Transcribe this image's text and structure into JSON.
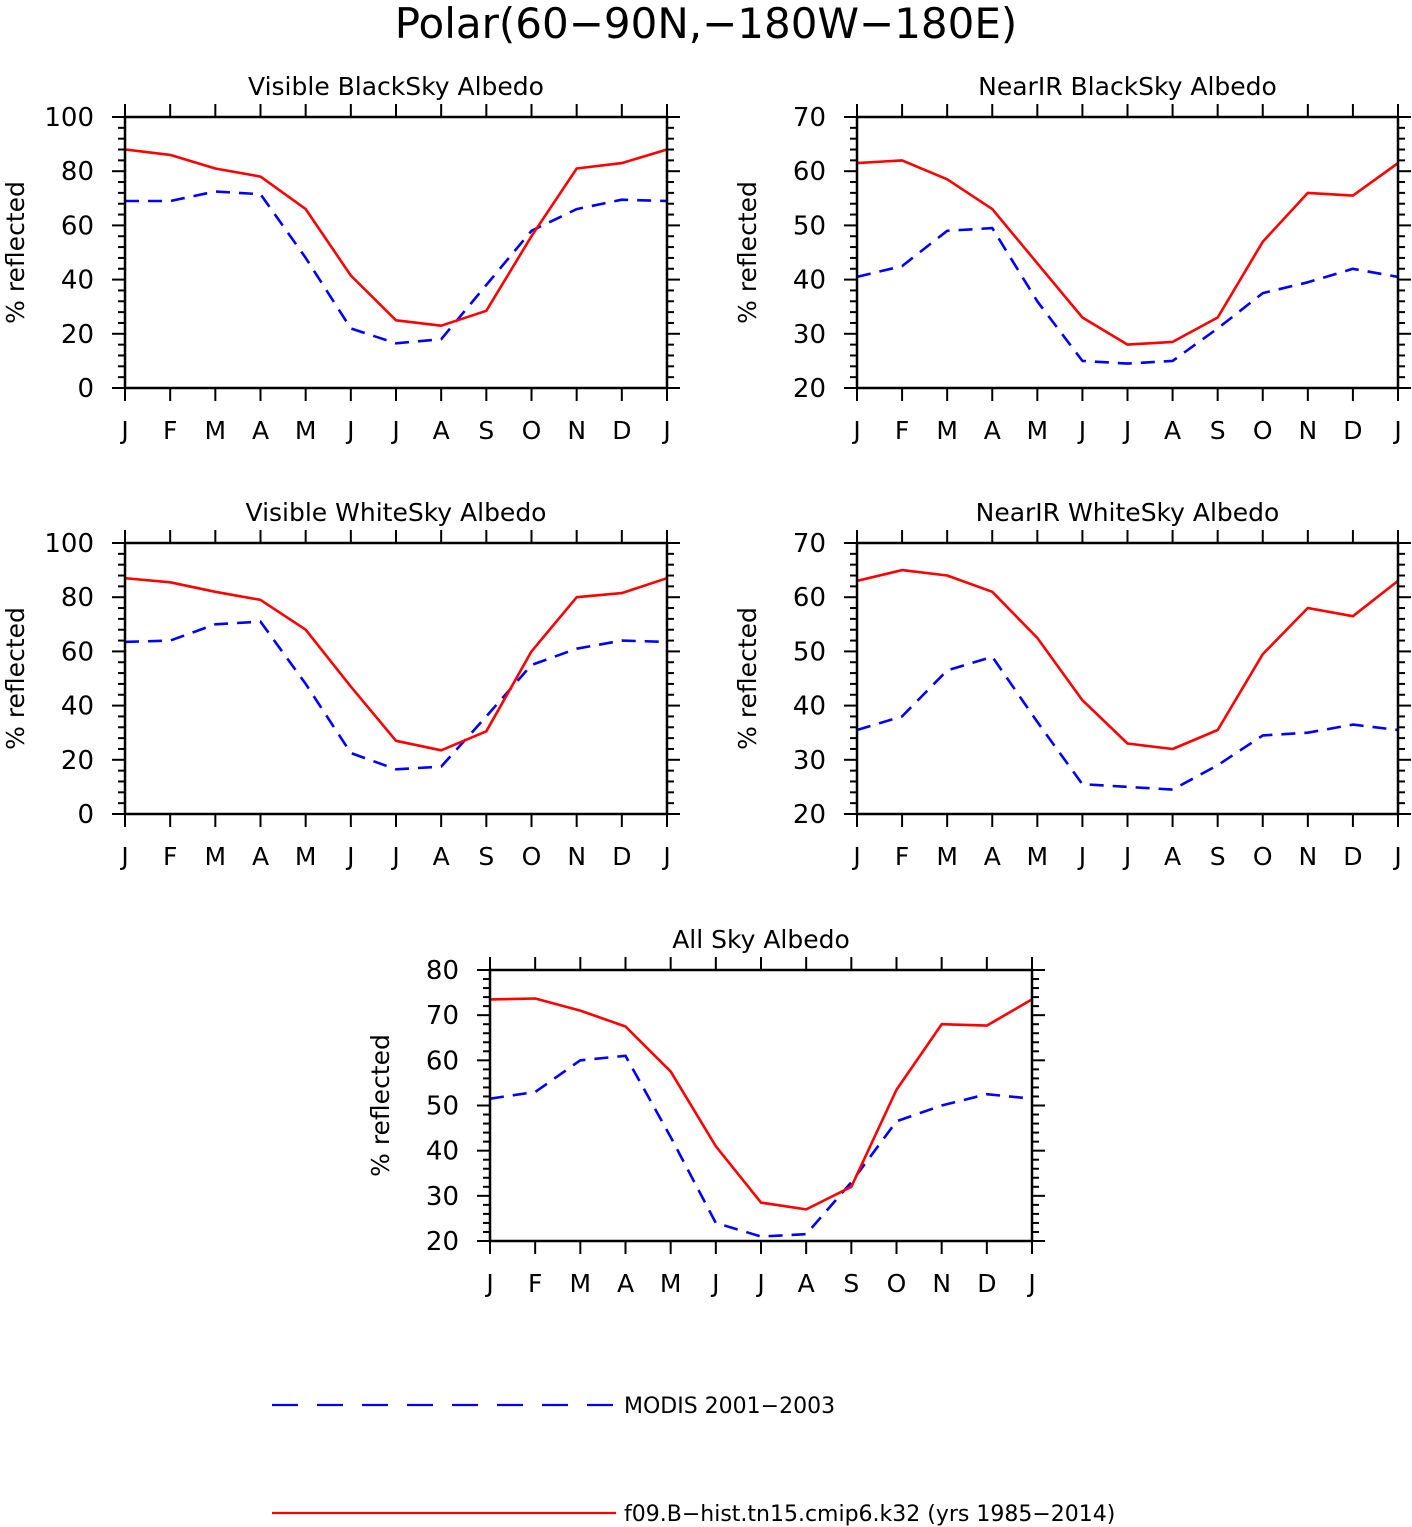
{
  "figure_title": "Polar(60−90N,−180W−180E)",
  "legend": [
    {
      "label": "MODIS 2001−2003",
      "color": "#0000ff",
      "dash": "dashed"
    },
    {
      "label": "f09.B−hist.tn15.cmip6.k32 (yrs 1985−2014)",
      "color": "#ff0000",
      "dash": "solid"
    }
  ],
  "chart_data": [
    {
      "type": "line",
      "title": "Visible BlackSky Albedo",
      "xlabel": "",
      "ylabel": "% reflected",
      "categories": [
        "J",
        "F",
        "M",
        "A",
        "M",
        "J",
        "J",
        "A",
        "S",
        "O",
        "N",
        "D",
        "J"
      ],
      "ylim": [
        0,
        100
      ],
      "yticks": [
        0,
        20,
        40,
        60,
        80,
        100
      ],
      "series": [
        {
          "name": "MODIS 2001−2003",
          "color": "#0000ff",
          "dash": "dashed",
          "values": [
            69,
            69,
            72.5,
            71.5,
            48,
            22,
            16.5,
            18,
            38,
            58,
            66,
            69.5,
            69
          ]
        },
        {
          "name": "f09.B−hist.tn15.cmip6.k32 (yrs 1985−2014)",
          "color": "#ff0000",
          "dash": "solid",
          "values": [
            88,
            86,
            81,
            78,
            66,
            41.5,
            25,
            23,
            28.5,
            56,
            81,
            83,
            88
          ]
        }
      ]
    },
    {
      "type": "line",
      "title": "NearIR BlackSky Albedo",
      "xlabel": "",
      "ylabel": "% reflected",
      "categories": [
        "J",
        "F",
        "M",
        "A",
        "M",
        "J",
        "J",
        "A",
        "S",
        "O",
        "N",
        "D",
        "J"
      ],
      "ylim": [
        20,
        70
      ],
      "yticks": [
        20,
        30,
        40,
        50,
        60,
        70
      ],
      "series": [
        {
          "name": "MODIS 2001−2003",
          "color": "#0000ff",
          "dash": "dashed",
          "values": [
            40.5,
            42.5,
            49,
            49.5,
            36,
            25,
            24.5,
            25,
            31,
            37.5,
            39.5,
            42,
            40.5
          ]
        },
        {
          "name": "f09.B−hist.tn15.cmip6.k32 (yrs 1985−2014)",
          "color": "#ff0000",
          "dash": "solid",
          "values": [
            61.5,
            62,
            58.5,
            53,
            43,
            33,
            28,
            28.5,
            33,
            47,
            56,
            55.5,
            61.5
          ]
        }
      ]
    },
    {
      "type": "line",
      "title": "Visible WhiteSky Albedo",
      "xlabel": "",
      "ylabel": "% reflected",
      "categories": [
        "J",
        "F",
        "M",
        "A",
        "M",
        "J",
        "J",
        "A",
        "S",
        "O",
        "N",
        "D",
        "J"
      ],
      "ylim": [
        0,
        100
      ],
      "yticks": [
        0,
        20,
        40,
        60,
        80,
        100
      ],
      "series": [
        {
          "name": "MODIS 2001−2003",
          "color": "#0000ff",
          "dash": "dashed",
          "values": [
            63.5,
            64,
            70,
            71,
            48,
            22.5,
            16.5,
            17.5,
            36,
            55,
            61,
            64,
            63.5
          ]
        },
        {
          "name": "f09.B−hist.tn15.cmip6.k32 (yrs 1985−2014)",
          "color": "#ff0000",
          "dash": "solid",
          "values": [
            87,
            85.5,
            82,
            79,
            68,
            47,
            27,
            23.5,
            30.5,
            60,
            80,
            81.5,
            87
          ]
        }
      ]
    },
    {
      "type": "line",
      "title": "NearIR WhiteSky Albedo",
      "xlabel": "",
      "ylabel": "% reflected",
      "categories": [
        "J",
        "F",
        "M",
        "A",
        "M",
        "J",
        "J",
        "A",
        "S",
        "O",
        "N",
        "D",
        "J"
      ],
      "ylim": [
        20,
        70
      ],
      "yticks": [
        20,
        30,
        40,
        50,
        60,
        70
      ],
      "series": [
        {
          "name": "MODIS 2001−2003",
          "color": "#0000ff",
          "dash": "dashed",
          "values": [
            35.5,
            38,
            46.5,
            49,
            37,
            25.5,
            25,
            24.5,
            29,
            34.5,
            35,
            36.5,
            35.5
          ]
        },
        {
          "name": "f09.B−hist.tn15.cmip6.k32 (yrs 1985−2014)",
          "color": "#ff0000",
          "dash": "solid",
          "values": [
            63,
            65,
            64,
            61,
            52.5,
            41,
            33,
            32,
            35.5,
            49.5,
            58,
            56.5,
            63
          ]
        }
      ]
    },
    {
      "type": "line",
      "title": "All Sky Albedo",
      "xlabel": "",
      "ylabel": "% reflected",
      "categories": [
        "J",
        "F",
        "M",
        "A",
        "M",
        "J",
        "J",
        "A",
        "S",
        "O",
        "N",
        "D",
        "J"
      ],
      "ylim": [
        20,
        80
      ],
      "yticks": [
        20,
        30,
        40,
        50,
        60,
        70,
        80
      ],
      "series": [
        {
          "name": "MODIS 2001−2003",
          "color": "#0000ff",
          "dash": "dashed",
          "values": [
            51.5,
            53,
            60,
            61,
            43,
            24,
            21,
            21.5,
            33,
            46.5,
            50,
            52.5,
            51.5
          ]
        },
        {
          "name": "f09.B−hist.tn15.cmip6.k32 (yrs 1985−2014)",
          "color": "#ff0000",
          "dash": "solid",
          "values": [
            73.5,
            73.7,
            71,
            67.5,
            57.5,
            41,
            28.5,
            27,
            32,
            53.5,
            68,
            67.7,
            73.5
          ]
        }
      ]
    }
  ]
}
